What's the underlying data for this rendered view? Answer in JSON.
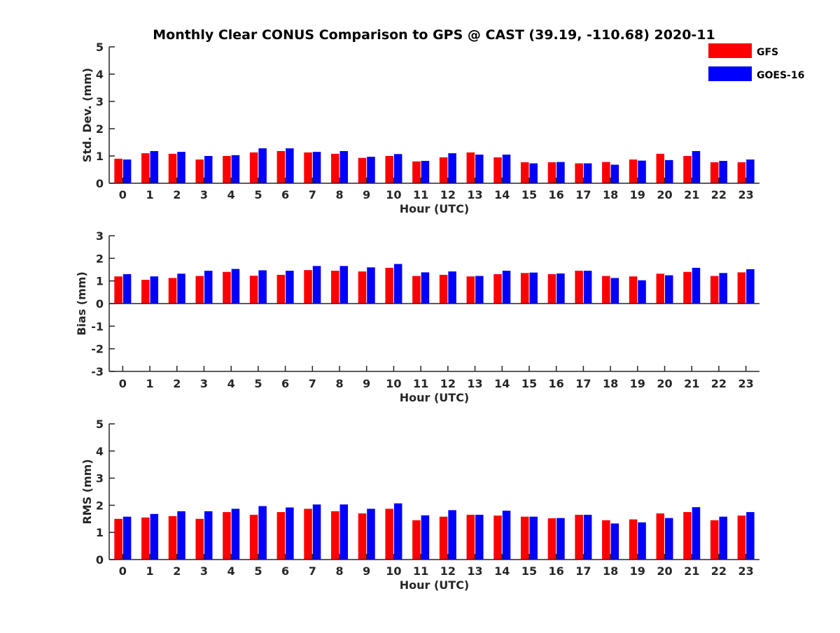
{
  "title": "Monthly Clear CONUS Comparison to GPS @ CAST (39.19, -110.68) 2020-11",
  "legend": {
    "placement": "top-right",
    "entries": [
      {
        "label": "GFS",
        "color": "#ff0000"
      },
      {
        "label": "GOES-16",
        "color": "#0000ff"
      }
    ]
  },
  "chart_data": [
    {
      "type": "bar",
      "xlabel": "Hour (UTC)",
      "ylabel": "Std. Dev. (mm)",
      "ylim": [
        0,
        5
      ],
      "yticks": [
        "0",
        "1",
        "2",
        "3",
        "4",
        "5"
      ],
      "categories": [
        "0",
        "1",
        "2",
        "3",
        "4",
        "5",
        "6",
        "7",
        "8",
        "9",
        "10",
        "11",
        "12",
        "13",
        "14",
        "15",
        "16",
        "17",
        "18",
        "19",
        "20",
        "21",
        "22",
        "23"
      ],
      "series": [
        {
          "name": "GFS",
          "color": "#ff0000",
          "values": [
            0.9,
            1.1,
            1.08,
            0.87,
            1.0,
            1.13,
            1.18,
            1.13,
            1.08,
            0.93,
            1.0,
            0.8,
            0.95,
            1.13,
            0.95,
            0.77,
            0.77,
            0.73,
            0.78,
            0.87,
            1.08,
            1.0,
            0.77,
            0.77
          ]
        },
        {
          "name": "GOES-16",
          "color": "#0000ff",
          "values": [
            0.87,
            1.18,
            1.15,
            1.0,
            1.03,
            1.28,
            1.28,
            1.15,
            1.18,
            0.97,
            1.07,
            0.82,
            1.1,
            1.05,
            1.05,
            0.73,
            0.78,
            0.73,
            0.68,
            0.83,
            0.85,
            1.18,
            0.82,
            0.87
          ]
        }
      ]
    },
    {
      "type": "bar",
      "xlabel": "Hour (UTC)",
      "ylabel": "Bias (mm)",
      "ylim": [
        -3,
        3
      ],
      "yticks": [
        "-3",
        "-2",
        "-1",
        "0",
        "1",
        "2",
        "3"
      ],
      "categories": [
        "0",
        "1",
        "2",
        "3",
        "4",
        "5",
        "6",
        "7",
        "8",
        "9",
        "10",
        "11",
        "12",
        "13",
        "14",
        "15",
        "16",
        "17",
        "18",
        "19",
        "20",
        "21",
        "22",
        "23"
      ],
      "series": [
        {
          "name": "GFS",
          "color": "#ff0000",
          "values": [
            1.2,
            1.05,
            1.13,
            1.22,
            1.4,
            1.23,
            1.27,
            1.48,
            1.45,
            1.42,
            1.58,
            1.22,
            1.27,
            1.2,
            1.3,
            1.35,
            1.3,
            1.45,
            1.22,
            1.2,
            1.32,
            1.4,
            1.22,
            1.38
          ]
        },
        {
          "name": "GOES-16",
          "color": "#0000ff",
          "values": [
            1.3,
            1.2,
            1.32,
            1.45,
            1.53,
            1.47,
            1.45,
            1.66,
            1.66,
            1.6,
            1.75,
            1.38,
            1.42,
            1.22,
            1.45,
            1.37,
            1.33,
            1.45,
            1.13,
            1.03,
            1.25,
            1.58,
            1.35,
            1.52
          ]
        }
      ]
    },
    {
      "type": "bar",
      "xlabel": "Hour (UTC)",
      "ylabel": "RMS (mm)",
      "ylim": [
        0,
        5
      ],
      "yticks": [
        "0",
        "1",
        "2",
        "3",
        "4",
        "5"
      ],
      "categories": [
        "0",
        "1",
        "2",
        "3",
        "4",
        "5",
        "6",
        "7",
        "8",
        "9",
        "10",
        "11",
        "12",
        "13",
        "14",
        "15",
        "16",
        "17",
        "18",
        "19",
        "20",
        "21",
        "22",
        "23"
      ],
      "series": [
        {
          "name": "GFS",
          "color": "#ff0000",
          "values": [
            1.5,
            1.55,
            1.6,
            1.5,
            1.75,
            1.65,
            1.75,
            1.87,
            1.78,
            1.7,
            1.87,
            1.45,
            1.58,
            1.65,
            1.62,
            1.58,
            1.52,
            1.65,
            1.45,
            1.48,
            1.7,
            1.75,
            1.45,
            1.62
          ]
        },
        {
          "name": "GOES-16",
          "color": "#0000ff",
          "values": [
            1.58,
            1.68,
            1.78,
            1.78,
            1.87,
            1.97,
            1.92,
            2.03,
            2.03,
            1.87,
            2.07,
            1.63,
            1.82,
            1.65,
            1.8,
            1.58,
            1.53,
            1.65,
            1.33,
            1.37,
            1.53,
            1.93,
            1.58,
            1.75
          ]
        }
      ]
    }
  ]
}
